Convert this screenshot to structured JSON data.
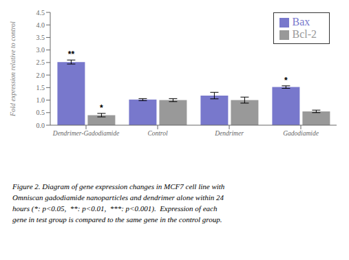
{
  "chart_data": {
    "type": "bar",
    "categories": [
      "Dendrimer-Gadodiamide",
      "Control",
      "Dendrimer",
      "Gadodiamide"
    ],
    "series": [
      {
        "name": "Bax",
        "color": "#7878cc",
        "values": [
          2.52,
          1.02,
          1.18,
          1.52
        ],
        "errors": [
          0.08,
          0.04,
          0.13,
          0.05
        ],
        "significance": [
          "**",
          null,
          null,
          "*"
        ]
      },
      {
        "name": "Bcl-2",
        "color": "#999999",
        "values": [
          0.4,
          1.0,
          1.0,
          0.55
        ],
        "errors": [
          0.07,
          0.06,
          0.12,
          0.05
        ],
        "significance": [
          "*",
          null,
          null,
          null
        ]
      }
    ],
    "ylabel": "Fold expression relative to control",
    "ylim": [
      0.0,
      4.5
    ],
    "yticks": [
      {
        "value": 0,
        "label": "0.0"
      },
      {
        "value": 0.5,
        "label": "0.5"
      },
      {
        "value": 1,
        "label": "1.0"
      },
      {
        "value": 1.5,
        "label": "1.5"
      },
      {
        "value": 2,
        "label": "2.0"
      },
      {
        "value": 2.5,
        "label": "2.5"
      },
      {
        "value": 3,
        "label": "3.0"
      },
      {
        "value": 3.5,
        "label": "3.5"
      },
      {
        "value": 4,
        "label": "4.0"
      },
      {
        "value": 4.5,
        "label": "4.5"
      }
    ],
    "legend": "upper right",
    "grid": false,
    "caption": "Figure 2. Diagram of gene expression changes in MCF7 cell line with\nOmniscan gadodiamide nanoparticles and dendrimer alone within 24\nhours (*: p<0.05,  **: p<0.01,  ***: p<0.001).  Expression of each\ngene in test group is compared to the same gene in the control group."
  }
}
